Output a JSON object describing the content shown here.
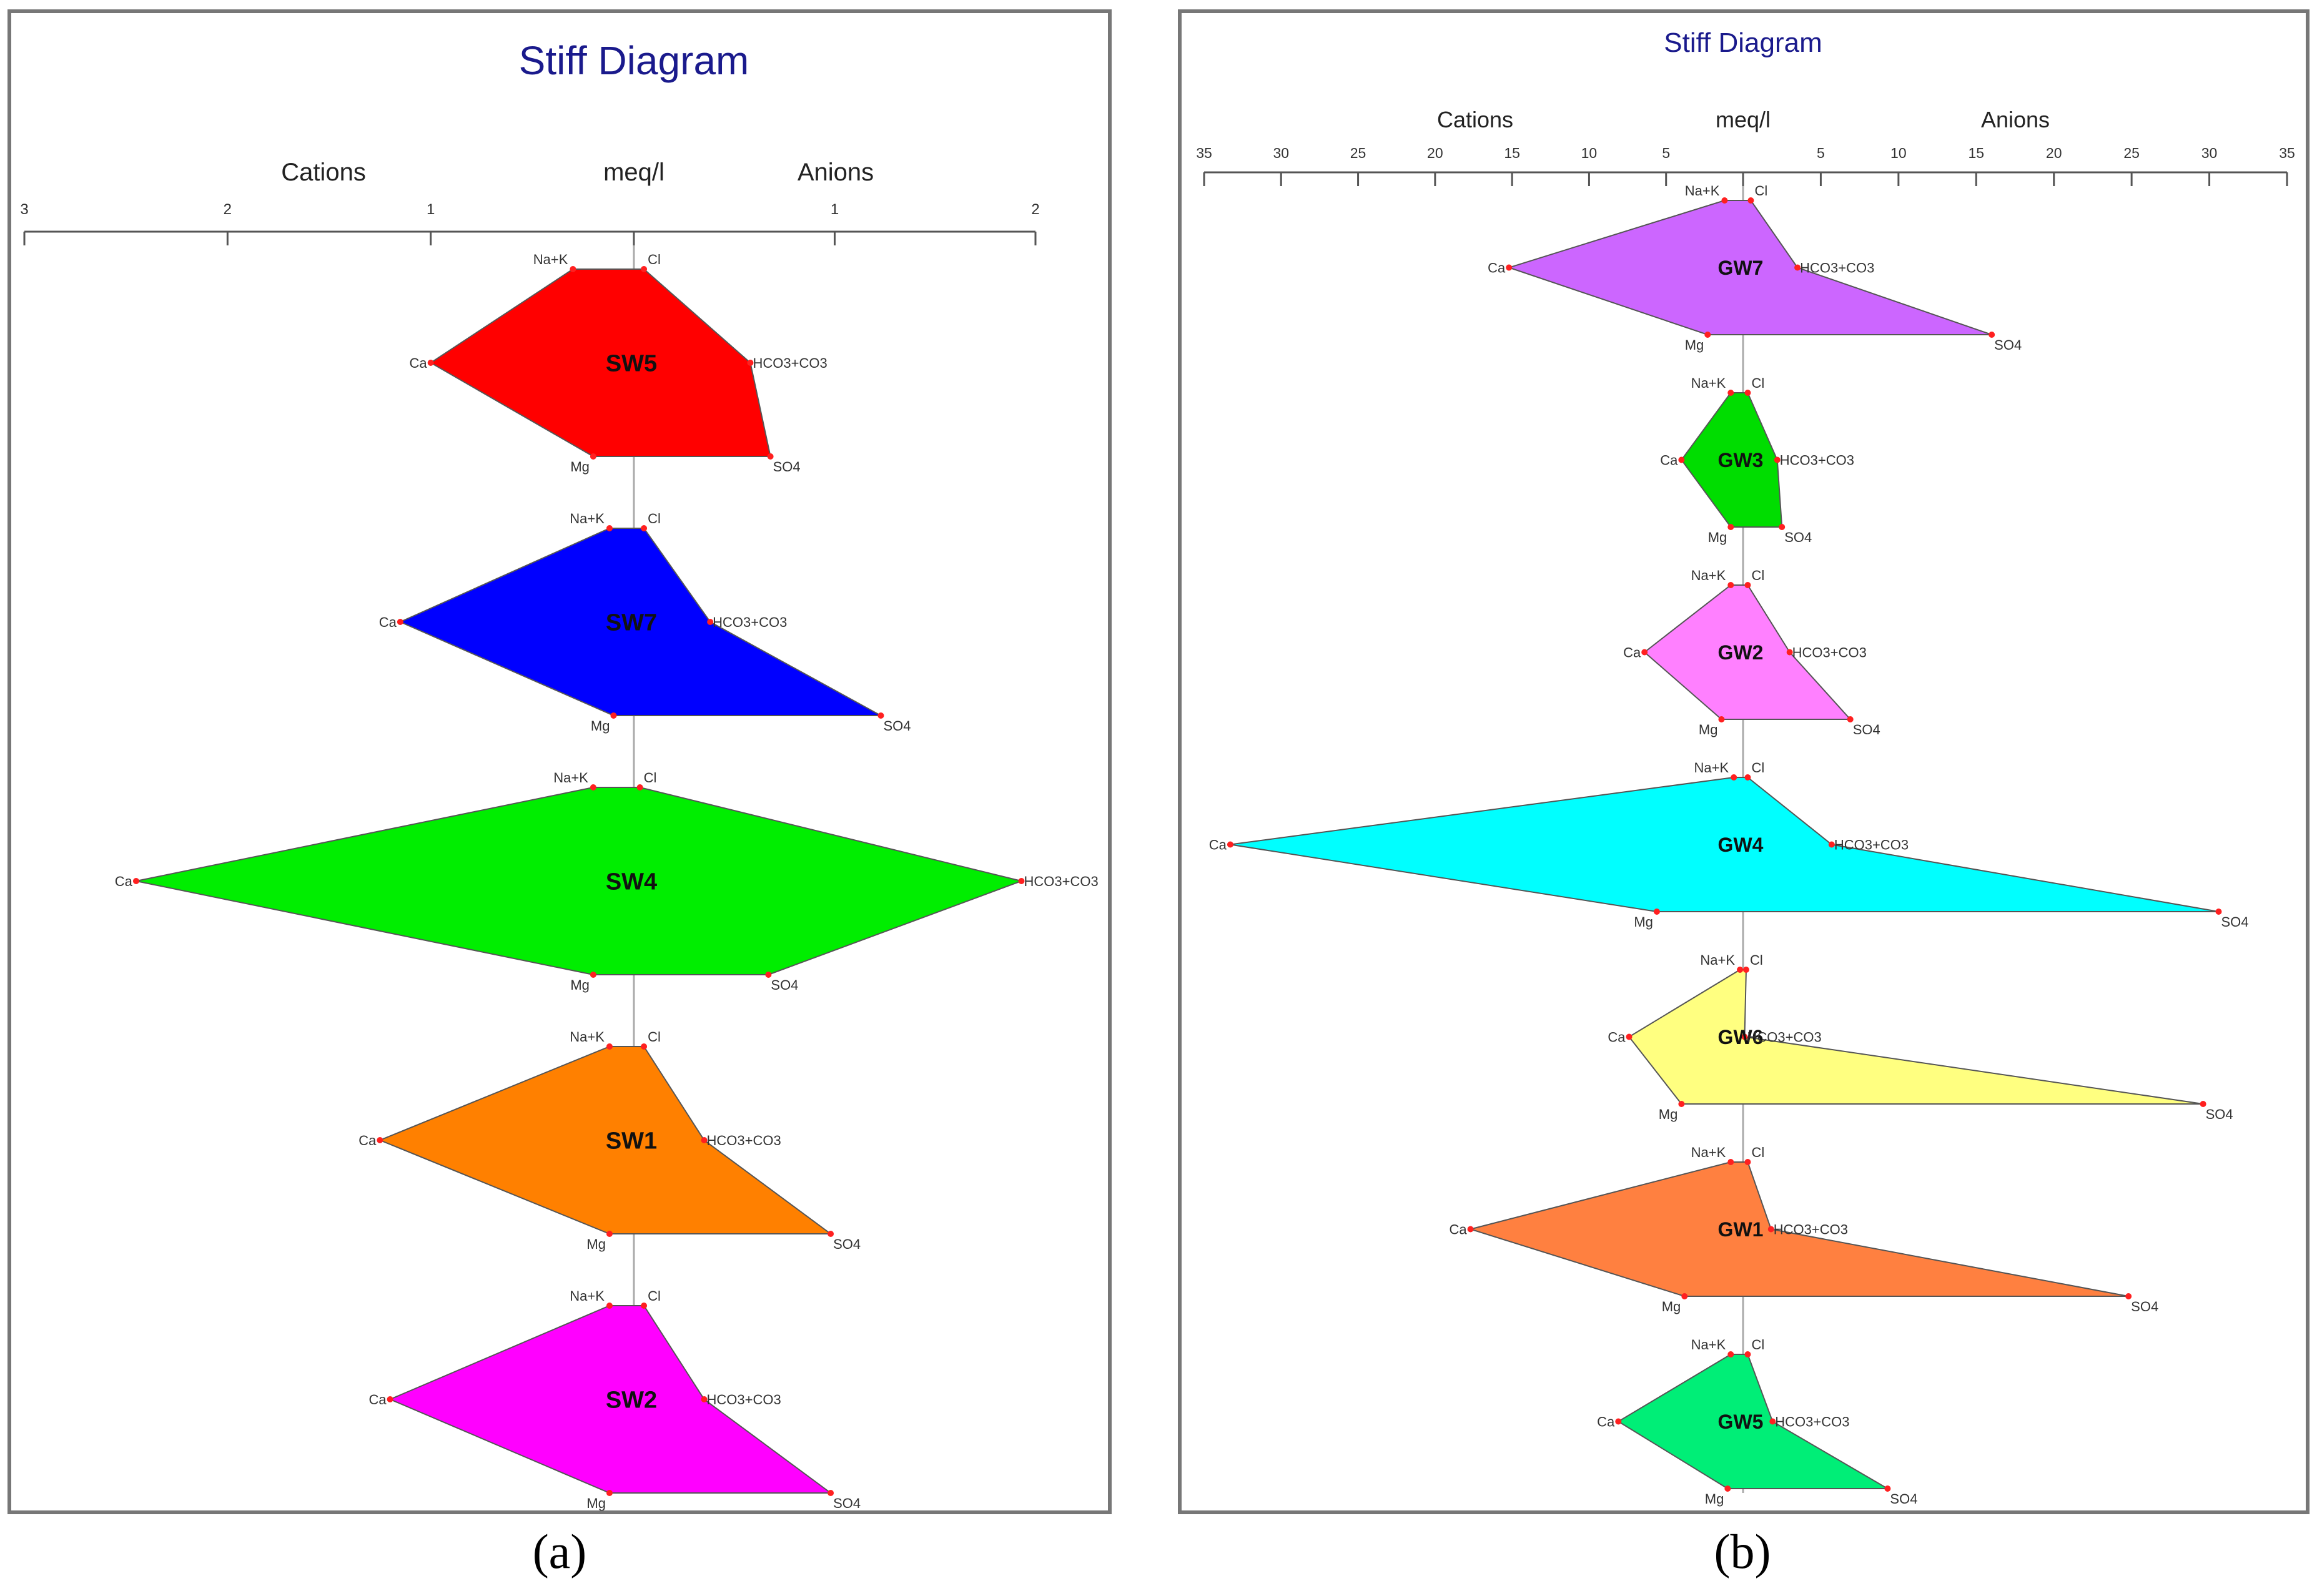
{
  "chart_data": [
    {
      "type": "stiff",
      "title": "Stiff Diagram",
      "axis": {
        "left_label": "Cations",
        "center_label": "meq/l",
        "right_label": "Anions"
      },
      "ticks": [
        "3",
        "2",
        "1",
        "",
        "1",
        "2"
      ],
      "tick_values": [
        3,
        2,
        1,
        0,
        1,
        2
      ],
      "xlim_cations": 3,
      "xlim_anions": 2,
      "ion_labels": {
        "left": [
          "Na+K",
          "Ca",
          "Mg"
        ],
        "right": [
          "Cl",
          "HCO3+CO3",
          "SO4"
        ]
      },
      "samples": [
        {
          "name": "SW5",
          "color": "#ff0000",
          "cations": {
            "Na+K": 0.3,
            "Ca": 1.0,
            "Mg": 0.2
          },
          "anions": {
            "Cl": 0.05,
            "HCO3+CO3": 0.58,
            "SO4": 0.68
          }
        },
        {
          "name": "SW7",
          "color": "#0000ff",
          "cations": {
            "Na+K": 0.12,
            "Ca": 1.15,
            "Mg": 0.1
          },
          "anions": {
            "Cl": 0.05,
            "HCO3+CO3": 0.38,
            "SO4": 1.23
          }
        },
        {
          "name": "SW4",
          "color": "#00ee00",
          "cations": {
            "Na+K": 0.2,
            "Ca": 2.45,
            "Mg": 0.2
          },
          "anions": {
            "Cl": 0.03,
            "HCO3+CO3": 1.93,
            "SO4": 0.67
          }
        },
        {
          "name": "SW1",
          "color": "#ff8000",
          "cations": {
            "Na+K": 0.12,
            "Ca": 1.25,
            "Mg": 0.12
          },
          "anions": {
            "Cl": 0.05,
            "HCO3+CO3": 0.35,
            "SO4": 0.98
          }
        },
        {
          "name": "SW2",
          "color": "#ff00ff",
          "cations": {
            "Na+K": 0.12,
            "Ca": 1.2,
            "Mg": 0.12
          },
          "anions": {
            "Cl": 0.05,
            "HCO3+CO3": 0.35,
            "SO4": 0.98
          }
        }
      ],
      "caption": "(a)"
    },
    {
      "type": "stiff",
      "title": "Stiff Diagram",
      "axis": {
        "left_label": "Cations",
        "center_label": "meq/l",
        "right_label": "Anions"
      },
      "ticks": [
        "35",
        "30",
        "25",
        "20",
        "15",
        "10",
        "5",
        "",
        "5",
        "10",
        "15",
        "20",
        "25",
        "30",
        "35"
      ],
      "tick_values": [
        35,
        30,
        25,
        20,
        15,
        10,
        5,
        0,
        5,
        10,
        15,
        20,
        25,
        30,
        35
      ],
      "xlim_cations": 35,
      "xlim_anions": 35,
      "ion_labels": {
        "left": [
          "Na+K",
          "Ca",
          "Mg"
        ],
        "right": [
          "Cl",
          "HCO3+CO3",
          "SO4"
        ]
      },
      "samples": [
        {
          "name": "GW7",
          "color": "#cc66ff",
          "cations": {
            "Na+K": 1.2,
            "Ca": 15.2,
            "Mg": 2.3
          },
          "anions": {
            "Cl": 0.5,
            "HCO3+CO3": 3.5,
            "SO4": 16.0
          }
        },
        {
          "name": "GW3",
          "color": "#00dd00",
          "cations": {
            "Na+K": 0.8,
            "Ca": 4.0,
            "Mg": 0.8
          },
          "anions": {
            "Cl": 0.3,
            "HCO3+CO3": 2.2,
            "SO4": 2.5
          }
        },
        {
          "name": "GW2",
          "color": "#ff80ff",
          "cations": {
            "Na+K": 0.8,
            "Ca": 6.4,
            "Mg": 1.4
          },
          "anions": {
            "Cl": 0.3,
            "HCO3+CO3": 3.0,
            "SO4": 6.9
          }
        },
        {
          "name": "GW4",
          "color": "#00ffff",
          "cations": {
            "Na+K": 0.6,
            "Ca": 33.3,
            "Mg": 5.6
          },
          "anions": {
            "Cl": 0.3,
            "HCO3+CO3": 5.7,
            "SO4": 30.6
          }
        },
        {
          "name": "GW6",
          "color": "#ffff80",
          "cations": {
            "Na+K": 0.2,
            "Ca": 7.4,
            "Mg": 4.0
          },
          "anions": {
            "Cl": 0.2,
            "HCO3+CO3": 0.1,
            "SO4": 29.6
          }
        },
        {
          "name": "GW1",
          "color": "#ff8040",
          "cations": {
            "Na+K": 0.8,
            "Ca": 17.7,
            "Mg": 3.8
          },
          "anions": {
            "Cl": 0.3,
            "HCO3+CO3": 1.8,
            "SO4": 24.8
          }
        },
        {
          "name": "GW5",
          "color": "#00ee77",
          "cations": {
            "Na+K": 0.8,
            "Ca": 8.1,
            "Mg": 1.0
          },
          "anions": {
            "Cl": 0.3,
            "HCO3+CO3": 1.9,
            "SO4": 9.3
          }
        }
      ],
      "caption": "(b)"
    }
  ]
}
